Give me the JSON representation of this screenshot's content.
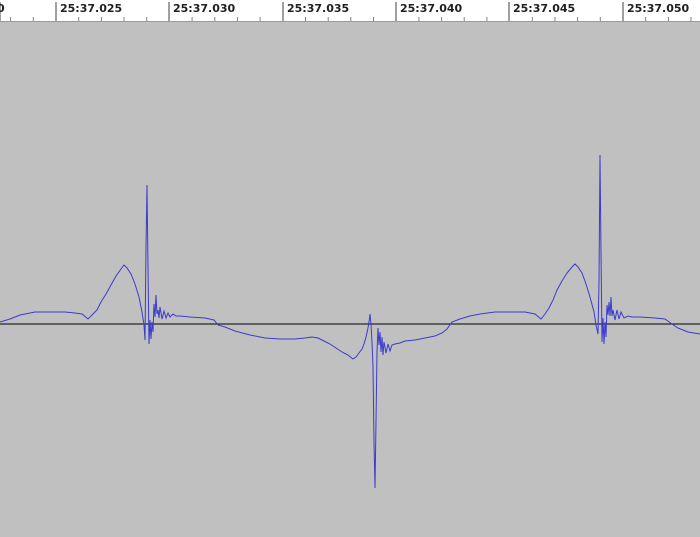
{
  "ruler": {
    "ticks": [
      {
        "label": "0"
      },
      {
        "label": "25:37.025"
      },
      {
        "label": "25:37.030"
      },
      {
        "label": "25:37.035"
      },
      {
        "label": "25:37.040"
      },
      {
        "label": "25:37.045"
      },
      {
        "label": "25:37.050"
      }
    ]
  },
  "waveform": {
    "line_color": "#3b3bcc",
    "baseline_color": "#000000",
    "background_color": "#c0c0c0"
  }
}
